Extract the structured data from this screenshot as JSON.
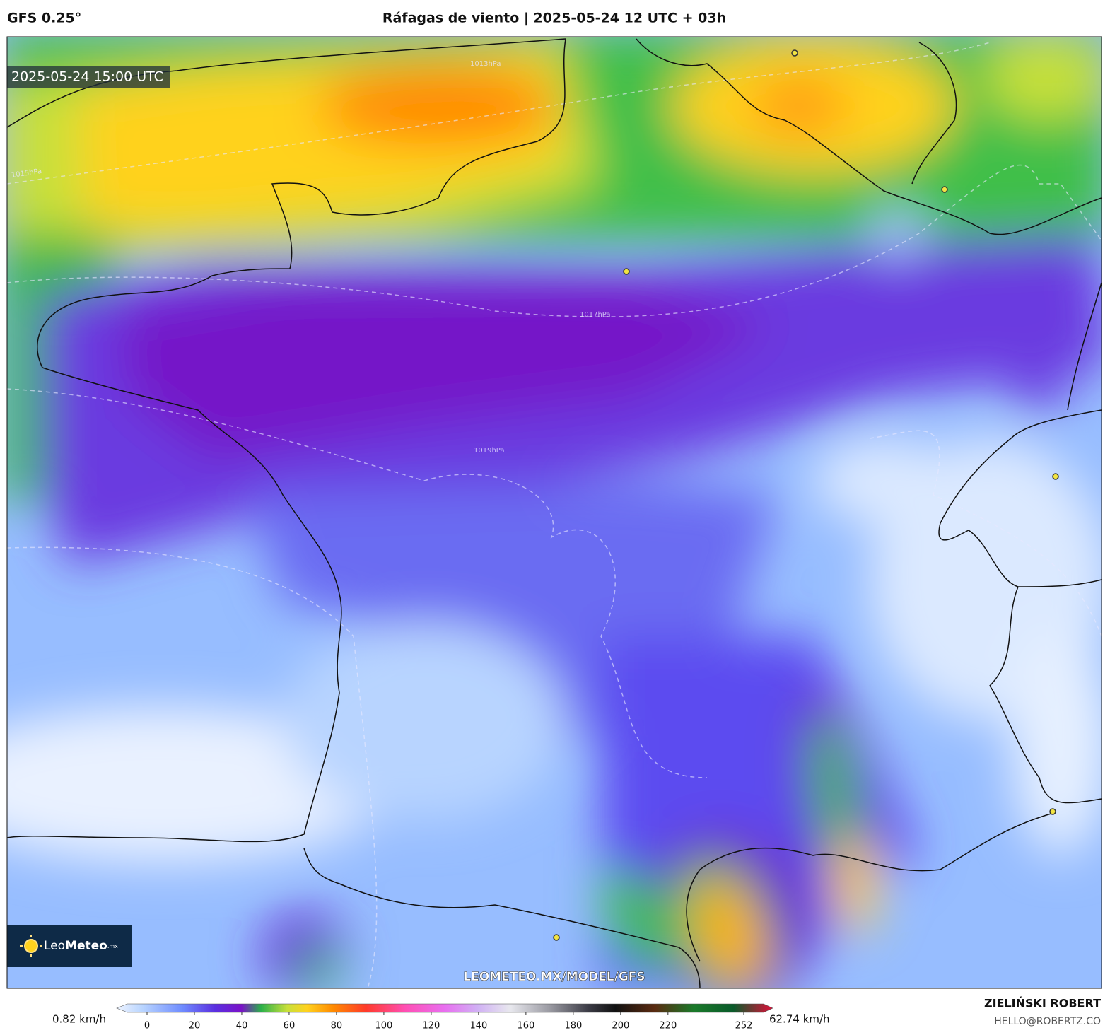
{
  "header": {
    "model": "GFS 0.25°",
    "title": "Ráfagas de viento | 2025-05-24 12 UTC + 03h"
  },
  "map": {
    "timestamp": "2025-05-24 15:00 UTC",
    "isobars": [
      "1013hPa",
      "1015hPa",
      "1017hPa",
      "1019hPa"
    ],
    "logo": {
      "name_a": "Leo",
      "name_b": "Meteo",
      "suffix": ".mx"
    },
    "watermark": "LEOMETEO.MX/MODEL/GFS"
  },
  "colorbar": {
    "min_label": "0.82 km/h",
    "max_label": "62.74 km/h",
    "ticks": [
      0,
      20,
      40,
      60,
      80,
      100,
      120,
      140,
      160,
      180,
      200,
      220,
      252
    ]
  },
  "credit": {
    "name": "ZIELIŃSKI ROBERT",
    "email": "HELLO@ROBERTZ.CO"
  }
}
